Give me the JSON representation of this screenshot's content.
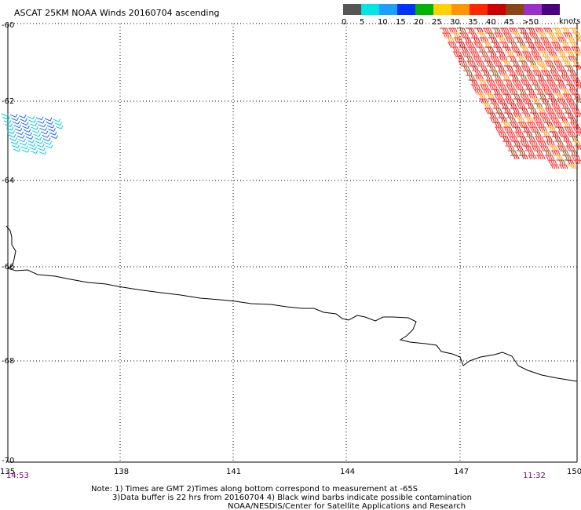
{
  "title": "ASCAT 25KM NOAA Winds 20160704 ascending",
  "legend": {
    "unit": "knots",
    "bins": [
      {
        "label": "0",
        "color": "#555555"
      },
      {
        "label": "5",
        "color": "#00e5e5"
      },
      {
        "label": "10",
        "color": "#1ca0ff"
      },
      {
        "label": "15",
        "color": "#0032ff"
      },
      {
        "label": "20",
        "color": "#00b400"
      },
      {
        "label": "25",
        "color": "#ffd200"
      },
      {
        "label": "30",
        "color": "#ff9600"
      },
      {
        "label": "35",
        "color": "#ff2800"
      },
      {
        "label": "40",
        "color": "#cc0000"
      },
      {
        "label": "45",
        "color": "#8b4513"
      },
      {
        "label": ">50",
        "color": "#9b30c8"
      },
      {
        "label": "",
        "color": "#4b0082"
      }
    ]
  },
  "axes": {
    "lat_ticks": [
      "-60",
      "-62",
      "-64",
      "-66",
      "-68",
      "-70"
    ],
    "lon_ticks": [
      "135",
      "138",
      "141",
      "144",
      "147",
      "150"
    ]
  },
  "times": {
    "left": "14:53",
    "right": "11:32"
  },
  "notes": [
    "Note: 1) Times are GMT 2)Times along bottom correspond to measurement at -65S",
    "3)Data buffer is 22 hrs from 20160704 4) Black wind barbs indicate possible contamination",
    "NOAA/NESDIS/Center for Satellite Applications and Research"
  ],
  "colors": {
    "grid": "#000000",
    "coast": "#000000",
    "time_label": "#800080",
    "barb_blue": "#1e64ff",
    "barb_cyan": "#00c8e6",
    "barb_red": "#ff1a1a",
    "barb_darkred": "#cc0000",
    "barb_orange": "#ff9600",
    "barb_brown": "#8b4513"
  }
}
